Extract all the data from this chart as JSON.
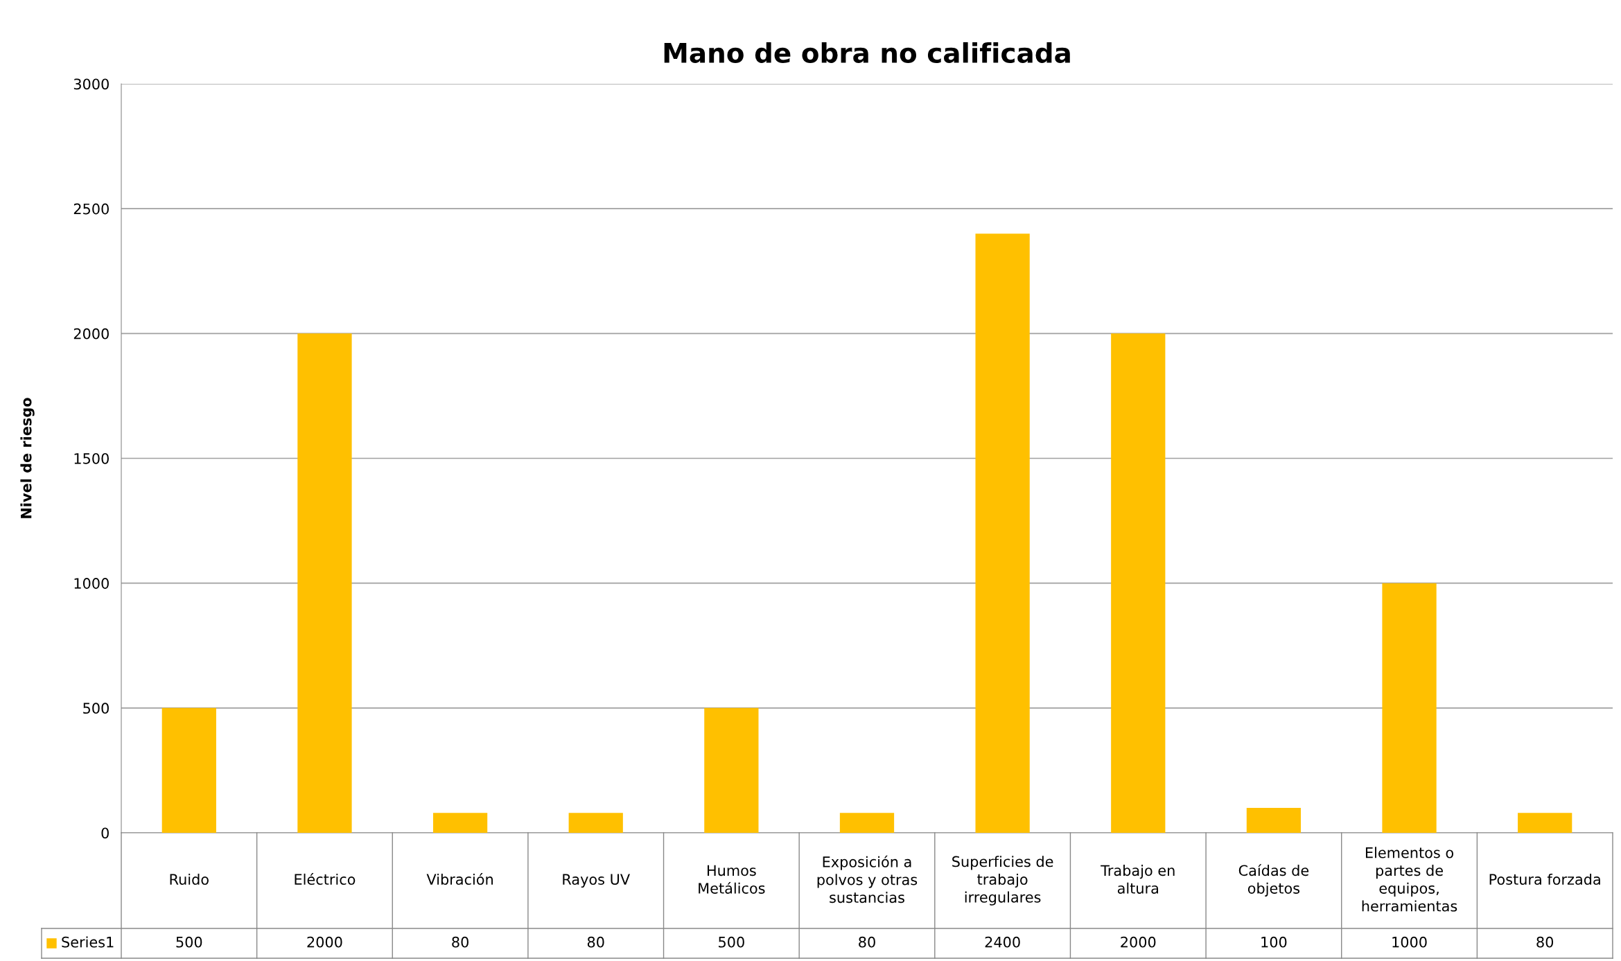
{
  "chart_data": {
    "type": "bar",
    "title": "Mano de obra no calificada",
    "ylabel": "Nivel de riesgo",
    "categories": [
      "Ruido",
      "Eléctrico",
      "Vibración",
      "Rayos UV",
      "Humos Metálicos",
      "Exposición a polvos y otras sustancias",
      "Superficies de trabajo irregulares",
      "Trabajo en altura",
      "Caídas de objetos",
      "Elementos o partes de equipos, herramientas",
      "Postura forzada"
    ],
    "series": [
      {
        "name": "Series1",
        "color": "#ffc000",
        "values": [
          500,
          2000,
          80,
          80,
          500,
          80,
          2400,
          2000,
          100,
          1000,
          80
        ]
      }
    ],
    "ylim": [
      0,
      3000
    ],
    "yticks": [
      0,
      500,
      1000,
      1500,
      2000,
      2500,
      3000
    ],
    "grid": "y",
    "data_labels": true
  }
}
